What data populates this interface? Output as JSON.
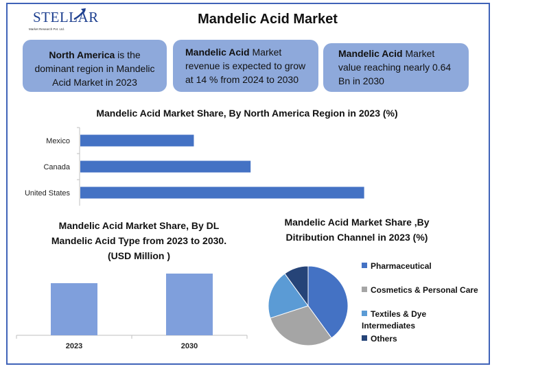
{
  "logo": {
    "name": "STELLAR",
    "tagline": "Market Research Pvt. Ltd."
  },
  "title": "Mandelic Acid Market",
  "highlights": [
    {
      "bold": "North America",
      "text": " is the dominant region in Mandelic Acid Market in 2023"
    },
    {
      "bold": "Mandelic Acid",
      "text": " Market revenue is expected to grow at 14 % from 2024 to 2030"
    },
    {
      "bold": "Mandelic Acid",
      "text": " Market value reaching nearly 0.64 Bn in 2030"
    }
  ],
  "colors": {
    "border": "#3f62b8",
    "box": "#8ea9db",
    "bar": "#4472c4",
    "column": "#7f9fdc"
  },
  "chart_data": [
    {
      "type": "bar",
      "orientation": "horizontal",
      "title": "Mandelic Acid Market Share, By North America Region in 2023 (%)",
      "categories": [
        "Mexico",
        "Canada",
        "United States"
      ],
      "values": [
        20,
        30,
        50
      ],
      "xlim": [
        0,
        55
      ],
      "grid": false
    },
    {
      "type": "bar",
      "title": "Mandelic Acid Market Share, By DL Mandelic Acid Type from 2023 to 2030. (USD  Million )",
      "categories": [
        "2023",
        "2030"
      ],
      "values": [
        76,
        90
      ],
      "ylim": [
        0,
        100
      ],
      "grid": false
    },
    {
      "type": "pie",
      "title": "Mandelic Acid Market Share ,By Ditribution Channel in 2023 (%)",
      "categories": [
        "Pharmaceutical",
        "Cosmetics & Personal Care",
        "Textiles & Dye Intermediates",
        "Others"
      ],
      "values": [
        40,
        30,
        20,
        10
      ],
      "colors": [
        "#4472c4",
        "#a5a5a5",
        "#5b9bd5",
        "#264478"
      ],
      "legend": "right"
    }
  ]
}
